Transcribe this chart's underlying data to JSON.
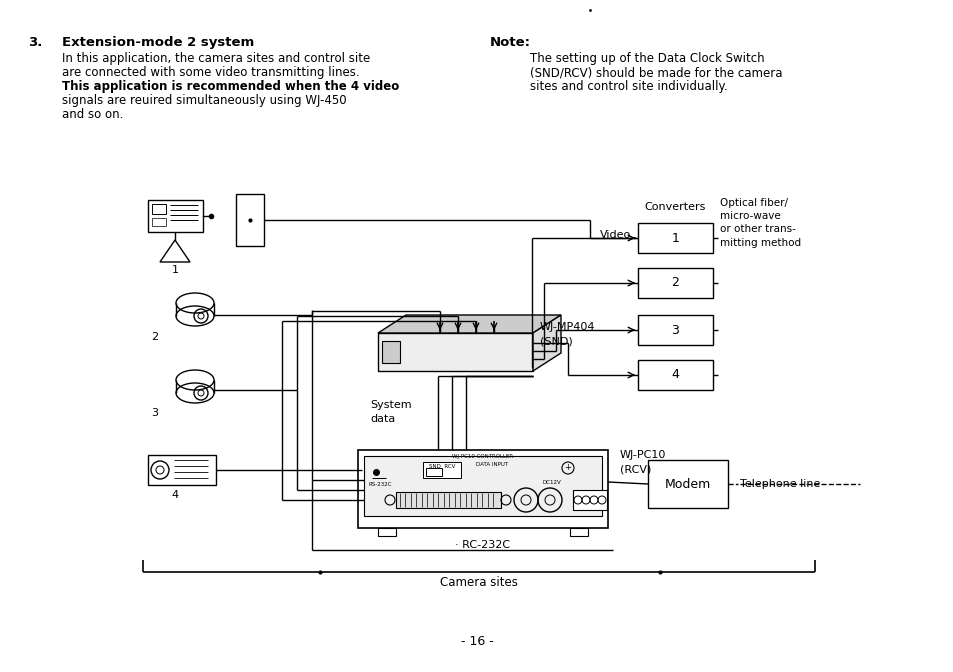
{
  "bg_color": "#ffffff",
  "text_color": "#000000",
  "page_number": "- 16 -",
  "section_number": "3.",
  "section_title": "Extension-mode 2 system",
  "section_body_line1": "In this application, the camera sites and control site",
  "section_body_line2": "are connected with some video transmitting lines.",
  "section_body_line3": "This application is recommended when the 4 video",
  "section_body_line4": "signals are reuired simultaneously using WJ-450",
  "section_body_line5": "and so on.",
  "note_title": "Note:",
  "note_body_line1": "The setting up of the Data Clock Switch",
  "note_body_line2": "(SND/RCV) should be made for the camera",
  "note_body_line3": "sites and control site individually.",
  "label_video": "Video",
  "label_converters": "Converters",
  "label_optical": "Optical fiber/\nmicro-wave\nor other trans-\nmitting method",
  "label_wjmp404": "WJ-MP404\n(SND)",
  "label_system_data": "System\ndata",
  "label_wjpc10": "WJ-PC10\n(RCV)",
  "label_modem": "Modem",
  "label_telephone": "Telephone line",
  "label_rc232c": "· RC-232C",
  "label_camera_sites": "Camera sites",
  "conv_labels": [
    "1",
    "2",
    "3",
    "4"
  ]
}
